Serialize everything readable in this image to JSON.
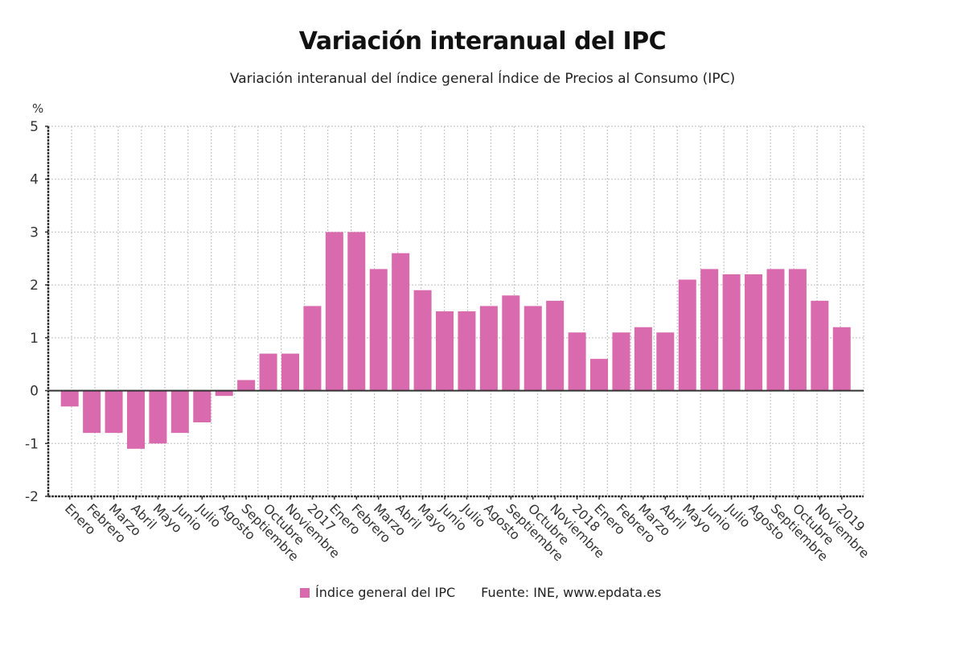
{
  "title": "Variación interanual del IPC",
  "subtitle": "Variación interanual del índice general Índice de Precios al Consumo (IPC)",
  "legend": {
    "series_label": "Índice general del IPC",
    "source": "Fuente: INE, www.epdata.es"
  },
  "colors": {
    "bar": "#d96aad",
    "grid": "#c8c8c8",
    "axis": "#333333",
    "zero_line": "#333333"
  },
  "chart_data": {
    "type": "bar",
    "title": "Variación interanual del IPC",
    "subtitle": "Variación interanual del índice general Índice de Precios al Consumo (IPC)",
    "xlabel": "",
    "ylabel": "%",
    "ylim": [
      -2,
      5
    ],
    "yticks": [
      -2,
      -1,
      0,
      1,
      2,
      3,
      4,
      5
    ],
    "grid": true,
    "legend_position": "bottom-center",
    "categories": [
      "Enero",
      "Febrero",
      "Marzo",
      "Abril",
      "Mayo",
      "Junio",
      "Julio",
      "Agosto",
      "Septiembre",
      "Octubre",
      "Noviembre",
      "2017",
      "Enero",
      "Febrero",
      "Marzo",
      "Abril",
      "Mayo",
      "Junio",
      "Julio",
      "Agosto",
      "Septiembre",
      "Octubre",
      "Noviembre",
      "2018",
      "Enero",
      "Febrero",
      "Marzo",
      "Abril",
      "Mayo",
      "Junio",
      "Julio",
      "Agosto",
      "Septiembre",
      "Octubre",
      "Noviembre",
      "2019"
    ],
    "series": [
      {
        "name": "Índice general del IPC",
        "values": [
          -0.3,
          -0.8,
          -0.8,
          -1.1,
          -1.0,
          -0.8,
          -0.6,
          -0.1,
          0.2,
          0.7,
          0.7,
          1.6,
          3.0,
          3.0,
          2.3,
          2.6,
          1.9,
          1.5,
          1.5,
          1.6,
          1.8,
          1.6,
          1.7,
          1.1,
          0.6,
          1.1,
          1.2,
          1.1,
          2.1,
          2.3,
          2.2,
          2.2,
          2.3,
          2.3,
          1.7,
          1.2
        ]
      }
    ],
    "source": "Fuente: INE, www.epdata.es"
  }
}
